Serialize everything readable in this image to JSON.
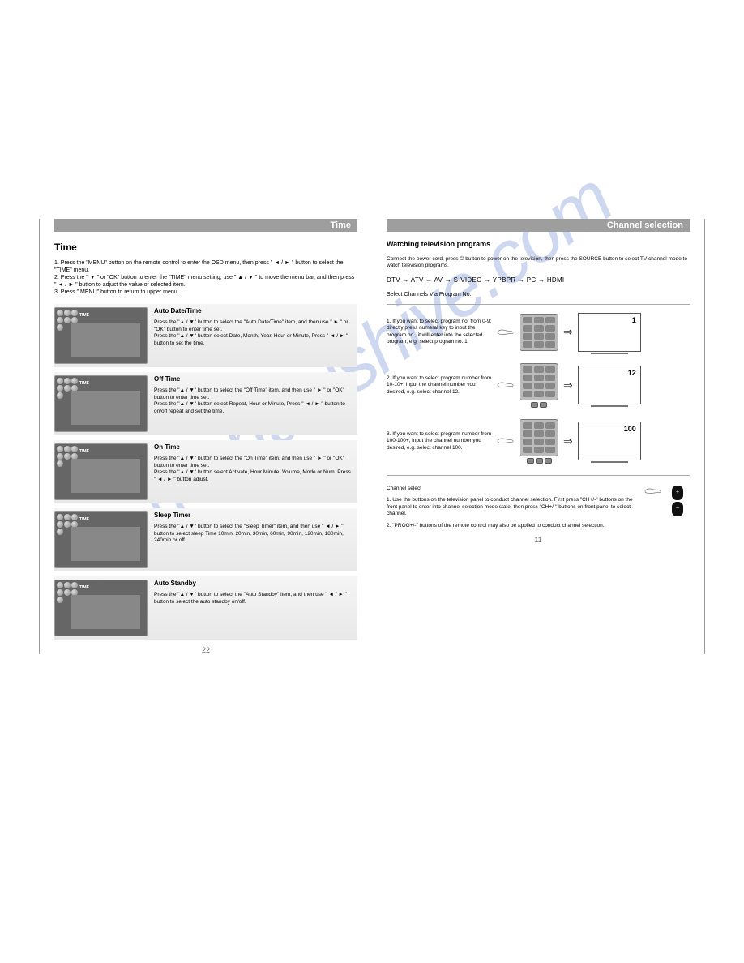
{
  "watermark": "manualshive.com",
  "left": {
    "header": "Time",
    "title": "Time",
    "instructions": "1. Press the \"MENU\" button on the remote control to enter the OSD menu, then press \" ◄ / ► \" button to select the \"TIME\" menu.\n2. Press the \" ▼ \" or \"OK\" button to enter the \"TIME\" menu setting, use \" ▲ / ▼ \" to move the menu bar, and then press \" ◄ / ► \" button to adjust the value of selected item.\n3. Press \" MENU\" button to return to upper menu.",
    "sections": [
      {
        "title": "Auto Date/Time",
        "body": "Press the \"▲ / ▼\" button to select the \"Auto Date/Time\" item, and then use \" ► \" or \"OK\" button to enter time set.\nPress the \"▲ / ▼\" button select Date, Month, Year, Hour or Minute, Press \" ◄ / ► \" button to set the time."
      },
      {
        "title": "Off Time",
        "body": "Press the \"▲ / ▼\" button to select the \"Off Time\" item, and then use \" ► \" or \"OK\" button to enter time set.\nPress the \"▲ / ▼\" button select Repeat, Hour or Minute, Press \" ◄ / ► \" button to on/off repeat and set the time."
      },
      {
        "title": "On Time",
        "body": "Press the \"▲ / ▼\" button to select the \"On Time\" item, and then use \" ► \" or \"OK\" button to enter time set.\nPress the \"▲ / ▼\" button select Activate, Hour Minute, Volume, Mode or Num. Press \" ◄ / ► \" button adjust."
      },
      {
        "title": "Sleep Timer",
        "body": "Press the \"▲ / ▼\" button to select the \"Sleep Timer\" item, and then use \" ◄ / ► \" button to select sleep Time 10min, 20min, 30min, 60min, 90min, 120min, 180min, 240min or off."
      },
      {
        "title": "Auto Standby",
        "body": "Press the \"▲ / ▼\" button to select the \"Auto Standby\" item, and then use \" ◄ / ► \" button to select the auto standby on/off."
      }
    ],
    "pageNum": "22"
  },
  "right": {
    "header": "Channel selection",
    "subTitle": "Watching television programs",
    "connectText": "Connect the power cord, press ⏻ button to power on the television, then press the SOURCE button to select TV channel mode to watch television programs.",
    "sourceChain": "DTV → ATV → AV → S-VIDEO → YPBPR → PC → HDMI",
    "selectLabel": "Select Channels Via Program No.",
    "rows": [
      {
        "text": "1. If you want to select program no. from 0-9: directly press numeral key to input the program no., it will enter into the selected program, e.g. select program no. 1",
        "tvNum": "1",
        "extraKeys": 0
      },
      {
        "text": "2. If you want to select program number from 10-10+, input the channel number you desired, e.g. select channel 12.",
        "tvNum": "12",
        "extraKeys": 2
      },
      {
        "text": "3. If you want to select program number from 100-100+, input the channel number you desired, e.g. select channel 100.",
        "tvNum": "100",
        "extraKeys": 3
      }
    ],
    "chSelect": {
      "label": "Channel select",
      "p1": "1. Use the buttons on the television panel to conduct channel selection. First press \"CH+/-\" buttons on the front panel to enter into channel selection mode state, then press \"CH+/-\" buttons on front panel to select channel.",
      "p2": "2. \"PROG+/-\" buttons of the remote control may also be applied to conduct channel selection."
    },
    "pageNum": "11"
  }
}
